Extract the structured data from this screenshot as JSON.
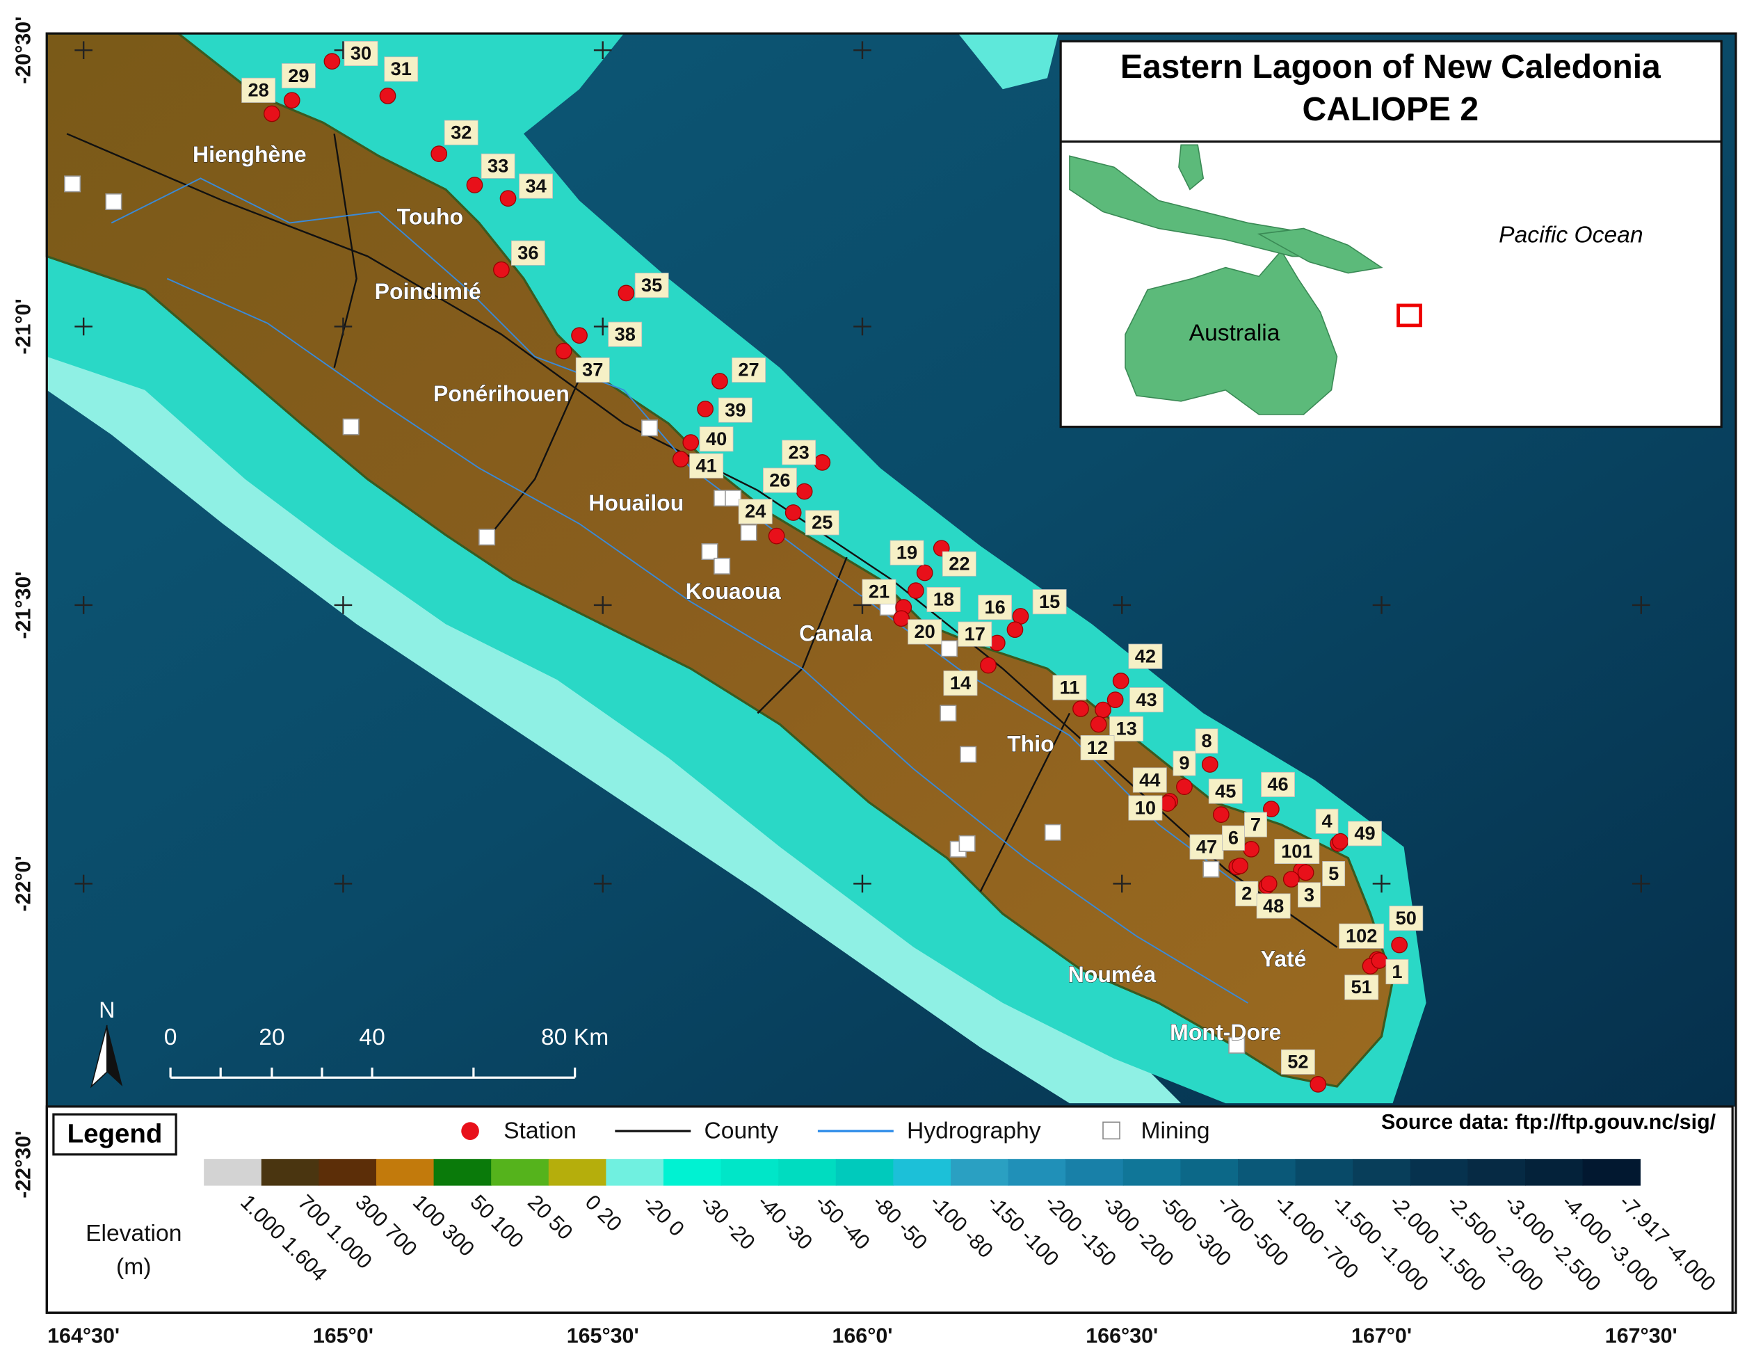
{
  "title": {
    "line1": "Eastern Lagoon of New Caledonia",
    "line2": "CALIOPE 2"
  },
  "inset": {
    "ocean": "Pacific Ocean",
    "continent": "Australia"
  },
  "places": [
    "Hienghène",
    "Touho",
    "Poindimié",
    "Ponérihouen",
    "Houailou",
    "Kouaoua",
    "Canala",
    "Thio",
    "Nouméa",
    "Yaté",
    "Mont-Dore"
  ],
  "stations": [
    "30",
    "31",
    "28",
    "29",
    "32",
    "33",
    "34",
    "36",
    "35",
    "38",
    "37",
    "27",
    "39",
    "40",
    "41",
    "23",
    "26",
    "25",
    "24",
    "19",
    "22",
    "21",
    "18",
    "16",
    "15",
    "17",
    "20",
    "14",
    "42",
    "11",
    "43",
    "13",
    "12",
    "8",
    "9",
    "44",
    "10",
    "45",
    "46",
    "7",
    "4",
    "49",
    "47",
    "6",
    "101",
    "5",
    "2",
    "48",
    "3",
    "102",
    "50",
    "51",
    "1",
    "52"
  ],
  "latitude_labels": [
    "-20°30'",
    "-21°0'",
    "-21°30'",
    "-22°0'",
    "-22°30'"
  ],
  "longitude_labels": [
    "164°30'",
    "165°0'",
    "165°30'",
    "166°0'",
    "166°30'",
    "167°0'",
    "167°30'"
  ],
  "scale_bar": {
    "north": "N",
    "labels": [
      "0",
      "20",
      "40",
      "80 Km"
    ]
  },
  "legend": {
    "title": "Legend",
    "items": [
      "Station",
      "County",
      "Hydrography",
      "Mining"
    ],
    "elevation_title": "Elevation",
    "elevation_unit": "(m)",
    "classes": [
      {
        "label": "1.000 1.604",
        "color": "#d3d3d3"
      },
      {
        "label": "700 1.000",
        "color": "#4a3510"
      },
      {
        "label": "300 700",
        "color": "#5c2e08"
      },
      {
        "label": "100 300",
        "color": "#c27a0c"
      },
      {
        "label": "50 100",
        "color": "#0a7a0a"
      },
      {
        "label": "20 50",
        "color": "#55b31c"
      },
      {
        "label": "0 20",
        "color": "#b5ae0c"
      },
      {
        "label": "-20 0",
        "color": "#70f0e0"
      },
      {
        "label": "-30 -20",
        "color": "#00f2d2"
      },
      {
        "label": "-40 -30",
        "color": "#00e6c8"
      },
      {
        "label": "-50 -40",
        "color": "#00dcc0"
      },
      {
        "label": "-80 -50",
        "color": "#00cabc"
      },
      {
        "label": "-100 -80",
        "color": "#1cc0d8"
      },
      {
        "label": "-150 -100",
        "color": "#2aa0c2"
      },
      {
        "label": "-200 -150",
        "color": "#2090b8"
      },
      {
        "label": "-300 -200",
        "color": "#1880a8"
      },
      {
        "label": "-500 -300",
        "color": "#107698"
      },
      {
        "label": "-700 -500",
        "color": "#0c6888"
      },
      {
        "label": "-1.000 -700",
        "color": "#0a5878"
      },
      {
        "label": "-1.500 -1.000",
        "color": "#084a68"
      },
      {
        "label": "-2.000 -1.500",
        "color": "#083e5a"
      },
      {
        "label": "-2.500 -2.000",
        "color": "#06324e"
      },
      {
        "label": "-3.000 -2.500",
        "color": "#062a44"
      },
      {
        "label": "-4.000 -3.000",
        "color": "#04223a"
      },
      {
        "label": "-7.917 -4.000",
        "color": "#021830"
      }
    ]
  },
  "source": "Source data: ftp://ftp.gouv.nc/sig/"
}
